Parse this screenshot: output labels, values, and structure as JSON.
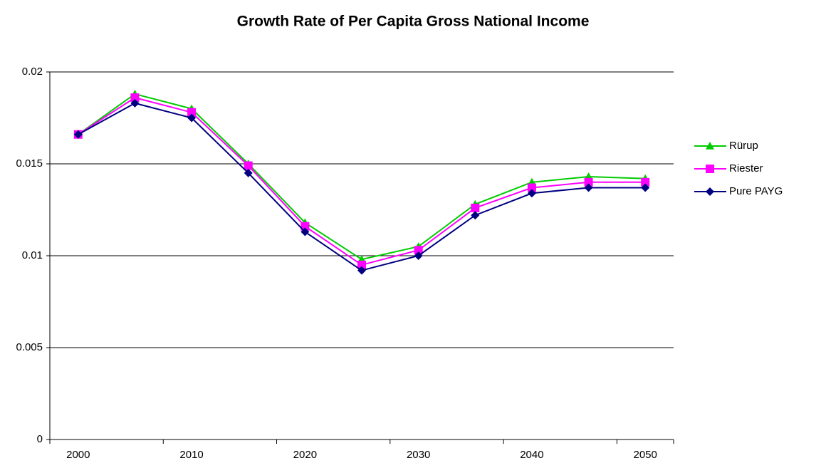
{
  "chart_data": {
    "type": "line",
    "title": "Growth Rate of Per Capita Gross National Income",
    "categories": [
      "2000",
      null,
      "2010",
      null,
      "2020",
      null,
      "2030",
      null,
      "2040",
      null,
      "2050"
    ],
    "series": [
      {
        "name": "Rürup",
        "color": "#00cc00",
        "marker": "triangle",
        "values": [
          0.0166,
          0.0188,
          0.018,
          0.015,
          0.0118,
          0.0098,
          0.0105,
          0.0128,
          0.014,
          0.0143,
          0.0142
        ]
      },
      {
        "name": "Riester",
        "color": "#ff00ff",
        "marker": "square",
        "values": [
          0.0166,
          0.0186,
          0.0178,
          0.0149,
          0.0116,
          0.0095,
          0.0103,
          0.0126,
          0.0137,
          0.014,
          0.014
        ]
      },
      {
        "name": "Pure PAYG",
        "color": "#000080",
        "marker": "diamond",
        "values": [
          0.0166,
          0.0183,
          0.0175,
          0.0145,
          0.0113,
          0.0092,
          0.01,
          0.0122,
          0.0134,
          0.0137,
          0.0137
        ]
      }
    ],
    "ylim": [
      0,
      0.02
    ],
    "yticks": [
      0,
      0.005,
      0.01,
      0.015,
      0.02
    ],
    "grid": true,
    "legend": "right"
  }
}
